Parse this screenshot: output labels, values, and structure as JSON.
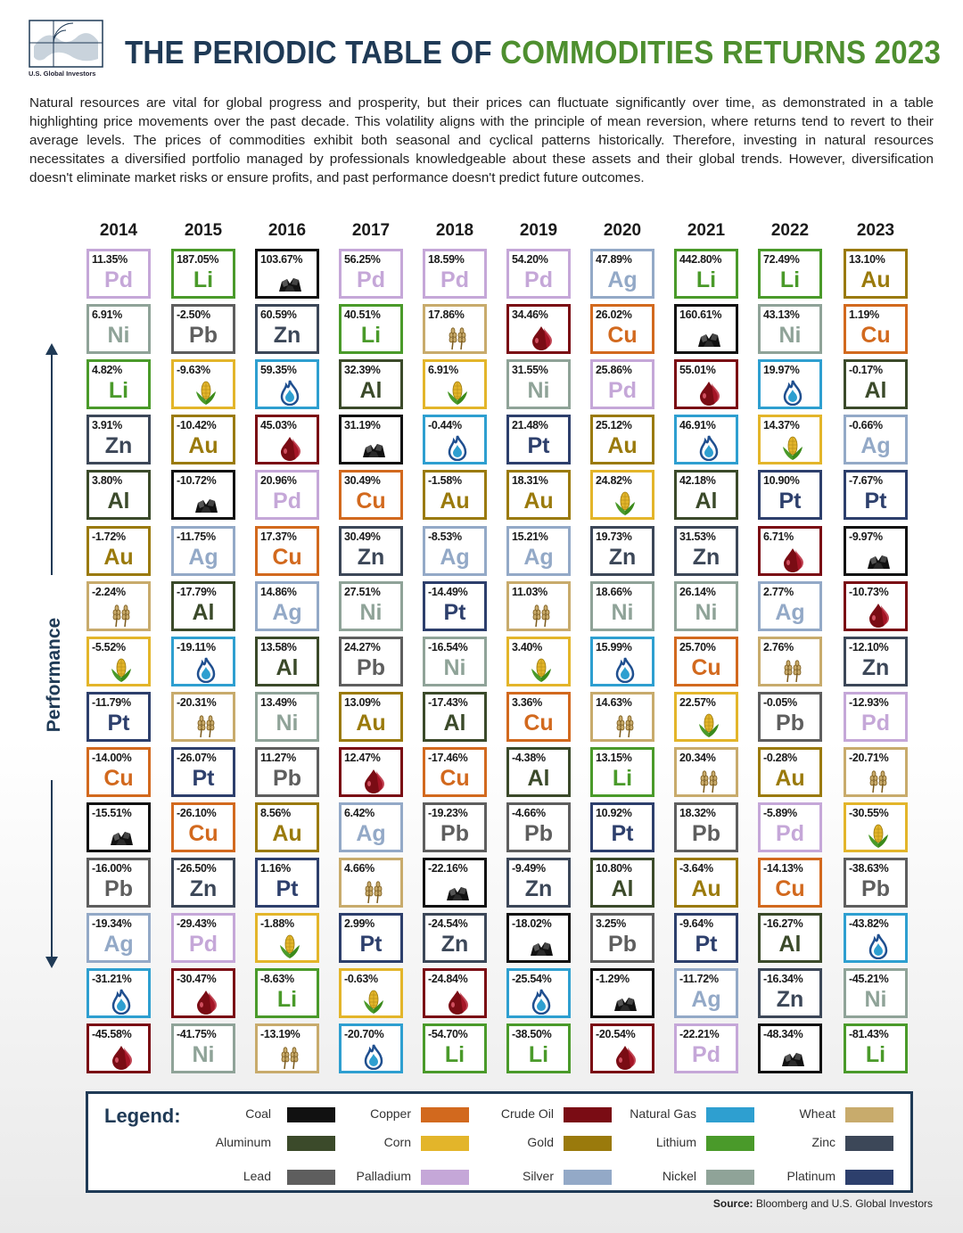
{
  "header": {
    "logo_text": "U.S. Global Investors",
    "title_part1": "THE PERIODIC TABLE OF ",
    "title_part2": "COMMODITIES RETURNS 2023",
    "intro": "Natural resources are vital for global progress and prosperity, but their prices can fluctuate significantly over time, as demonstrated in a table highlighting price movements over the past decade. This volatility aligns with the principle of mean reversion, where returns tend to revert to their average levels. The prices of commodities exhibit both seasonal and cyclical patterns historically. Therefore, investing in natural resources necessitates a diversified portfolio managed by professionals knowledgeable about these assets and their global trends. However, diversification doesn't eliminate market risks or ensure profits, and past performance doesn't predict future outcomes."
  },
  "colors": {
    "Coal": "#111111",
    "Copper": "#d2691e",
    "Crude Oil": "#7a0c14",
    "Natural Gas": "#2e9fd0",
    "Wheat": "#c8ab6c",
    "Aluminum": "#3b4a2a",
    "Corn": "#e3b52a",
    "Gold": "#9a7a0c",
    "Lithium": "#4a9a2a",
    "Zinc": "#3c4758",
    "Lead": "#5e5e5e",
    "Palladium": "#c5a7d8",
    "Silver": "#93a9c7",
    "Nickel": "#8fa398",
    "Platinum": "#2d3f6c"
  },
  "symbols": {
    "Coal": "",
    "Copper": "Cu",
    "Crude Oil": "",
    "Natural Gas": "",
    "Wheat": "",
    "Aluminum": "Al",
    "Corn": "",
    "Gold": "Au",
    "Lithium": "Li",
    "Zinc": "Zn",
    "Lead": "Pb",
    "Palladium": "Pd",
    "Silver": "Ag",
    "Nickel": "Ni",
    "Platinum": "Pt"
  },
  "icons": {
    "Coal": "coal-icon",
    "Crude Oil": "crude-oil-drop-icon",
    "Natural Gas": "natural-gas-flame-icon",
    "Wheat": "wheat-icon",
    "Corn": "corn-icon"
  },
  "chart_data": {
    "type": "table",
    "title": "THE PERIODIC TABLE OF COMMODITIES RETURNS 2023",
    "ylabel": "Performance",
    "years": [
      "2014",
      "2015",
      "2016",
      "2017",
      "2018",
      "2019",
      "2020",
      "2021",
      "2022",
      "2023"
    ],
    "columns": [
      [
        [
          "11.35%",
          "Palladium"
        ],
        [
          "6.91%",
          "Nickel"
        ],
        [
          "4.82%",
          "Lithium"
        ],
        [
          "3.91%",
          "Zinc"
        ],
        [
          "3.80%",
          "Aluminum"
        ],
        [
          "-1.72%",
          "Gold"
        ],
        [
          "-2.24%",
          "Wheat"
        ],
        [
          "-5.52%",
          "Corn"
        ],
        [
          "-11.79%",
          "Platinum"
        ],
        [
          "-14.00%",
          "Copper"
        ],
        [
          "-15.51%",
          "Coal"
        ],
        [
          "-16.00%",
          "Lead"
        ],
        [
          "-19.34%",
          "Silver"
        ],
        [
          "-31.21%",
          "Natural Gas"
        ],
        [
          "-45.58%",
          "Crude Oil"
        ]
      ],
      [
        [
          "187.05%",
          "Lithium"
        ],
        [
          "-2.50%",
          "Lead"
        ],
        [
          "-9.63%",
          "Corn"
        ],
        [
          "-10.42%",
          "Gold"
        ],
        [
          "-10.72%",
          "Coal"
        ],
        [
          "-11.75%",
          "Silver"
        ],
        [
          "-17.79%",
          "Aluminum"
        ],
        [
          "-19.11%",
          "Natural Gas"
        ],
        [
          "-20.31%",
          "Wheat"
        ],
        [
          "-26.07%",
          "Platinum"
        ],
        [
          "-26.10%",
          "Copper"
        ],
        [
          "-26.50%",
          "Zinc"
        ],
        [
          "-29.43%",
          "Palladium"
        ],
        [
          "-30.47%",
          "Crude Oil"
        ],
        [
          "-41.75%",
          "Nickel"
        ]
      ],
      [
        [
          "103.67%",
          "Coal"
        ],
        [
          "60.59%",
          "Zinc"
        ],
        [
          "59.35%",
          "Natural Gas"
        ],
        [
          "45.03%",
          "Crude Oil"
        ],
        [
          "20.96%",
          "Palladium"
        ],
        [
          "17.37%",
          "Copper"
        ],
        [
          "14.86%",
          "Silver"
        ],
        [
          "13.58%",
          "Aluminum"
        ],
        [
          "13.49%",
          "Nickel"
        ],
        [
          "11.27%",
          "Lead"
        ],
        [
          "8.56%",
          "Gold"
        ],
        [
          "1.16%",
          "Platinum"
        ],
        [
          "-1.88%",
          "Corn"
        ],
        [
          "-8.63%",
          "Lithium"
        ],
        [
          "-13.19%",
          "Wheat"
        ]
      ],
      [
        [
          "56.25%",
          "Palladium"
        ],
        [
          "40.51%",
          "Lithium"
        ],
        [
          "32.39%",
          "Aluminum"
        ],
        [
          "31.19%",
          "Coal"
        ],
        [
          "30.49%",
          "Copper"
        ],
        [
          "30.49%",
          "Zinc"
        ],
        [
          "27.51%",
          "Nickel"
        ],
        [
          "24.27%",
          "Lead"
        ],
        [
          "13.09%",
          "Gold"
        ],
        [
          "12.47%",
          "Crude Oil"
        ],
        [
          "6.42%",
          "Silver"
        ],
        [
          "4.66%",
          "Wheat"
        ],
        [
          "2.99%",
          "Platinum"
        ],
        [
          "-0.63%",
          "Corn"
        ],
        [
          "-20.70%",
          "Natural Gas"
        ]
      ],
      [
        [
          "18.59%",
          "Palladium"
        ],
        [
          "17.86%",
          "Wheat"
        ],
        [
          "6.91%",
          "Corn"
        ],
        [
          "-0.44%",
          "Natural Gas"
        ],
        [
          "-1.58%",
          "Gold"
        ],
        [
          "-8.53%",
          "Silver"
        ],
        [
          "-14.49%",
          "Platinum"
        ],
        [
          "-16.54%",
          "Nickel"
        ],
        [
          "-17.43%",
          "Aluminum"
        ],
        [
          "-17.46%",
          "Copper"
        ],
        [
          "-19.23%",
          "Lead"
        ],
        [
          "-22.16%",
          "Coal"
        ],
        [
          "-24.54%",
          "Zinc"
        ],
        [
          "-24.84%",
          "Crude Oil"
        ],
        [
          "-54.70%",
          "Lithium"
        ]
      ],
      [
        [
          "54.20%",
          "Palladium"
        ],
        [
          "34.46%",
          "Crude Oil"
        ],
        [
          "31.55%",
          "Nickel"
        ],
        [
          "21.48%",
          "Platinum"
        ],
        [
          "18.31%",
          "Gold"
        ],
        [
          "15.21%",
          "Silver"
        ],
        [
          "11.03%",
          "Wheat"
        ],
        [
          "3.40%",
          "Corn"
        ],
        [
          "3.36%",
          "Copper"
        ],
        [
          "-4.38%",
          "Aluminum"
        ],
        [
          "-4.66%",
          "Lead"
        ],
        [
          "-9.49%",
          "Zinc"
        ],
        [
          "-18.02%",
          "Coal"
        ],
        [
          "-25.54%",
          "Natural Gas"
        ],
        [
          "-38.50%",
          "Lithium"
        ]
      ],
      [
        [
          "47.89%",
          "Silver"
        ],
        [
          "26.02%",
          "Copper"
        ],
        [
          "25.86%",
          "Palladium"
        ],
        [
          "25.12%",
          "Gold"
        ],
        [
          "24.82%",
          "Corn"
        ],
        [
          "19.73%",
          "Zinc"
        ],
        [
          "18.66%",
          "Nickel"
        ],
        [
          "15.99%",
          "Natural Gas"
        ],
        [
          "14.63%",
          "Wheat"
        ],
        [
          "13.15%",
          "Lithium"
        ],
        [
          "10.92%",
          "Platinum"
        ],
        [
          "10.80%",
          "Aluminum"
        ],
        [
          "3.25%",
          "Lead"
        ],
        [
          "-1.29%",
          "Coal"
        ],
        [
          "-20.54%",
          "Crude Oil"
        ]
      ],
      [
        [
          "442.80%",
          "Lithium"
        ],
        [
          "160.61%",
          "Coal"
        ],
        [
          "55.01%",
          "Crude Oil"
        ],
        [
          "46.91%",
          "Natural Gas"
        ],
        [
          "42.18%",
          "Aluminum"
        ],
        [
          "31.53%",
          "Zinc"
        ],
        [
          "26.14%",
          "Nickel"
        ],
        [
          "25.70%",
          "Copper"
        ],
        [
          "22.57%",
          "Corn"
        ],
        [
          "20.34%",
          "Wheat"
        ],
        [
          "18.32%",
          "Lead"
        ],
        [
          "-3.64%",
          "Gold"
        ],
        [
          "-9.64%",
          "Platinum"
        ],
        [
          "-11.72%",
          "Silver"
        ],
        [
          "-22.21%",
          "Palladium"
        ]
      ],
      [
        [
          "72.49%",
          "Lithium"
        ],
        [
          "43.13%",
          "Nickel"
        ],
        [
          "19.97%",
          "Natural Gas"
        ],
        [
          "14.37%",
          "Corn"
        ],
        [
          "10.90%",
          "Platinum"
        ],
        [
          "6.71%",
          "Crude Oil"
        ],
        [
          "2.77%",
          "Silver"
        ],
        [
          "2.76%",
          "Wheat"
        ],
        [
          "-0.05%",
          "Lead"
        ],
        [
          "-0.28%",
          "Gold"
        ],
        [
          "-5.89%",
          "Palladium"
        ],
        [
          "-14.13%",
          "Copper"
        ],
        [
          "-16.27%",
          "Aluminum"
        ],
        [
          "-16.34%",
          "Zinc"
        ],
        [
          "-48.34%",
          "Coal"
        ]
      ],
      [
        [
          "13.10%",
          "Gold"
        ],
        [
          "1.19%",
          "Copper"
        ],
        [
          "-0.17%",
          "Aluminum"
        ],
        [
          "-0.66%",
          "Silver"
        ],
        [
          "-7.67%",
          "Platinum"
        ],
        [
          "-9.97%",
          "Coal"
        ],
        [
          "-10.73%",
          "Crude Oil"
        ],
        [
          "-12.10%",
          "Zinc"
        ],
        [
          "-12.93%",
          "Palladium"
        ],
        [
          "-20.71%",
          "Wheat"
        ],
        [
          "-30.55%",
          "Corn"
        ],
        [
          "-38.63%",
          "Lead"
        ],
        [
          "-43.82%",
          "Natural Gas"
        ],
        [
          "-45.21%",
          "Nickel"
        ],
        [
          "-81.43%",
          "Lithium"
        ]
      ]
    ]
  },
  "legend": {
    "title": "Legend:",
    "items": [
      "Coal",
      "Copper",
      "Crude Oil",
      "Natural Gas",
      "Wheat",
      "Aluminum",
      "Corn",
      "Gold",
      "Lithium",
      "Zinc",
      "Lead",
      "Palladium",
      "Silver",
      "Nickel",
      "Platinum"
    ]
  },
  "source": {
    "label": "Source:",
    "text": " Bloomberg and U.S. Global Investors"
  }
}
